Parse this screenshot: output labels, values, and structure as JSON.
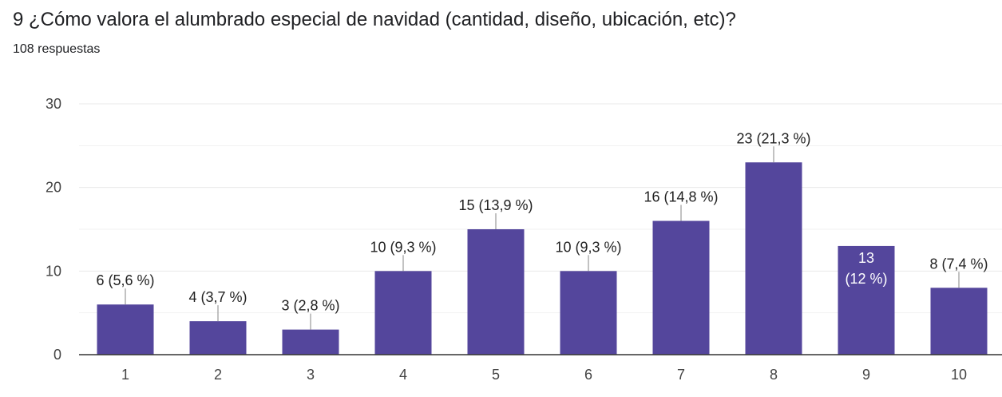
{
  "question": {
    "title": "9 ¿Cómo valora el alumbrado especial de navidad (cantidad, diseño, ubicación, etc)?",
    "responses": "108 respuestas"
  },
  "colors": {
    "bar": "#54469c",
    "grid": "#e8e8e8",
    "axis": "#333333",
    "leader": "#999999"
  },
  "chart_data": {
    "type": "bar",
    "categories": [
      "1",
      "2",
      "3",
      "4",
      "5",
      "6",
      "7",
      "8",
      "9",
      "10"
    ],
    "values": [
      6,
      4,
      3,
      10,
      15,
      10,
      16,
      23,
      13,
      8
    ],
    "data_labels": [
      "6 (5,6 %)",
      "4 (3,7 %)",
      "3 (2,8 %)",
      "10 (9,3 %)",
      "15 (13,9 %)",
      "10 (9,3 %)",
      "16 (14,8 %)",
      "23 (21,3 %)",
      "13",
      "8 (7,4 %)"
    ],
    "data_labels_second_line": [
      "",
      "",
      "",
      "",
      "",
      "",
      "",
      "",
      "(12 %)",
      ""
    ],
    "label_inside_bar": [
      false,
      false,
      false,
      false,
      false,
      false,
      false,
      false,
      true,
      false
    ],
    "y_ticks": [
      "0",
      "10",
      "20",
      "30"
    ],
    "ylim": [
      0,
      30
    ],
    "grid": true,
    "legend": "none"
  }
}
